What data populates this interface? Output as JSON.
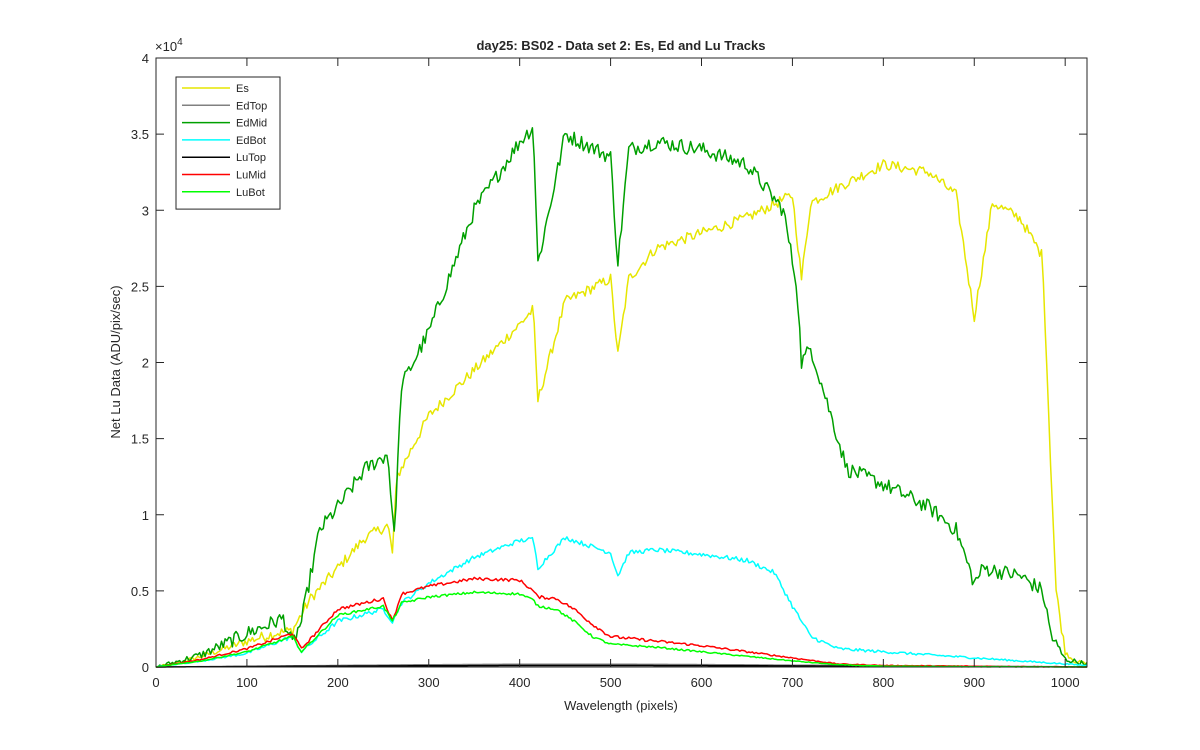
{
  "chart_data": {
    "type": "line",
    "title": "day25: BS02 - Data set 2: Es, Ed and Lu Tracks",
    "xlabel": "Wavelength (pixels)",
    "ylabel": "Net Lu Data (ADU/pix/sec)",
    "y_exponent_label": "×10",
    "y_exponent_power": "4",
    "xlim": [
      0,
      1024
    ],
    "ylim": [
      0,
      4
    ],
    "xticks": [
      0,
      100,
      200,
      300,
      400,
      500,
      600,
      700,
      800,
      900,
      1000
    ],
    "yticks": [
      0,
      0.5,
      1,
      1.5,
      2,
      2.5,
      3,
      3.5,
      4
    ],
    "ytick_labels": [
      "0",
      "0.5",
      "1",
      "1.5",
      "2",
      "2.5",
      "3",
      "3.5",
      "4"
    ],
    "grid": false,
    "legend_position": "top-left",
    "series": [
      {
        "name": "Es",
        "color": "#e6e600",
        "noise": 0.035,
        "x": [
          0,
          20,
          50,
          100,
          130,
          150,
          170,
          200,
          230,
          255,
          260,
          265,
          300,
          350,
          400,
          415,
          420,
          450,
          500,
          508,
          520,
          550,
          600,
          650,
          700,
          710,
          720,
          750,
          800,
          850,
          880,
          900,
          920,
          950,
          975,
          985,
          990,
          1000,
          1010,
          1024
        ],
        "y": [
          0,
          0.02,
          0.07,
          0.17,
          0.22,
          0.24,
          0.45,
          0.65,
          0.85,
          0.93,
          0.75,
          1.25,
          1.65,
          1.95,
          2.25,
          2.35,
          1.75,
          2.4,
          2.55,
          2.05,
          2.55,
          2.75,
          2.85,
          2.95,
          3.1,
          2.55,
          3.05,
          3.15,
          3.3,
          3.25,
          3.1,
          2.3,
          3.05,
          2.95,
          2.7,
          1.2,
          0.5,
          0.1,
          0.04,
          0.02
        ]
      },
      {
        "name": "EdTop",
        "color": "#808080",
        "noise": 0.0,
        "x": [
          0,
          100,
          200,
          300,
          400,
          500,
          600,
          700,
          800,
          900,
          1000,
          1024
        ],
        "y": [
          0,
          0.005,
          0.01,
          0.015,
          0.018,
          0.018,
          0.016,
          0.012,
          0.008,
          0.005,
          0.002,
          0.001
        ]
      },
      {
        "name": "EdMid",
        "color": "#00a000",
        "noise": 0.05,
        "x": [
          0,
          20,
          50,
          100,
          140,
          150,
          160,
          180,
          200,
          230,
          255,
          262,
          270,
          300,
          350,
          400,
          415,
          420,
          450,
          500,
          508,
          520,
          550,
          600,
          650,
          690,
          705,
          710,
          720,
          740,
          760,
          800,
          850,
          880,
          900,
          910,
          950,
          975,
          985,
          1000,
          1024
        ],
        "y": [
          0,
          0.03,
          0.08,
          0.22,
          0.32,
          0.15,
          0.3,
          0.9,
          1.05,
          1.3,
          1.4,
          0.85,
          1.85,
          2.2,
          3.0,
          3.45,
          3.55,
          2.65,
          3.5,
          3.35,
          2.65,
          3.4,
          3.45,
          3.4,
          3.3,
          3.0,
          2.5,
          2.0,
          2.1,
          1.7,
          1.3,
          1.2,
          1.05,
          0.9,
          0.55,
          0.65,
          0.6,
          0.5,
          0.2,
          0.05,
          0.02
        ]
      },
      {
        "name": "EdBot",
        "color": "#00ffff",
        "noise": 0.015,
        "x": [
          0,
          50,
          100,
          150,
          160,
          200,
          250,
          260,
          270,
          300,
          350,
          400,
          415,
          420,
          450,
          500,
          508,
          520,
          550,
          600,
          650,
          680,
          700,
          720,
          750,
          800,
          900,
          1000,
          1024
        ],
        "y": [
          0,
          0.04,
          0.09,
          0.2,
          0.1,
          0.3,
          0.38,
          0.3,
          0.42,
          0.55,
          0.72,
          0.83,
          0.84,
          0.65,
          0.85,
          0.75,
          0.6,
          0.75,
          0.77,
          0.74,
          0.7,
          0.62,
          0.4,
          0.2,
          0.12,
          0.1,
          0.06,
          0.02,
          0.01
        ]
      },
      {
        "name": "LuTop",
        "color": "#000000",
        "noise": 0.0,
        "x": [
          0,
          100,
          200,
          300,
          400,
          500,
          600,
          700,
          800,
          900,
          1000,
          1024
        ],
        "y": [
          0,
          0.003,
          0.006,
          0.008,
          0.01,
          0.01,
          0.009,
          0.007,
          0.004,
          0.002,
          0.001,
          0.0
        ]
      },
      {
        "name": "LuMid",
        "color": "#ff0000",
        "noise": 0.01,
        "x": [
          0,
          50,
          100,
          150,
          160,
          200,
          250,
          260,
          270,
          300,
          350,
          400,
          415,
          420,
          440,
          460,
          480,
          500,
          550,
          600,
          650,
          700,
          750,
          800,
          900,
          1024
        ],
        "y": [
          0,
          0.05,
          0.12,
          0.22,
          0.12,
          0.38,
          0.45,
          0.3,
          0.48,
          0.53,
          0.58,
          0.57,
          0.5,
          0.46,
          0.45,
          0.38,
          0.28,
          0.2,
          0.17,
          0.14,
          0.1,
          0.06,
          0.02,
          0.01,
          0.005,
          0.0
        ]
      },
      {
        "name": "LuBot",
        "color": "#00ff00",
        "noise": 0.008,
        "x": [
          0,
          50,
          100,
          150,
          160,
          200,
          250,
          260,
          270,
          300,
          350,
          400,
          415,
          420,
          440,
          460,
          480,
          500,
          550,
          600,
          650,
          700,
          750,
          800,
          900,
          1024
        ],
        "y": [
          0,
          0.04,
          0.1,
          0.2,
          0.1,
          0.34,
          0.4,
          0.3,
          0.42,
          0.46,
          0.49,
          0.48,
          0.44,
          0.4,
          0.38,
          0.3,
          0.2,
          0.15,
          0.13,
          0.1,
          0.07,
          0.04,
          0.015,
          0.005,
          0.002,
          0.0
        ]
      }
    ]
  }
}
